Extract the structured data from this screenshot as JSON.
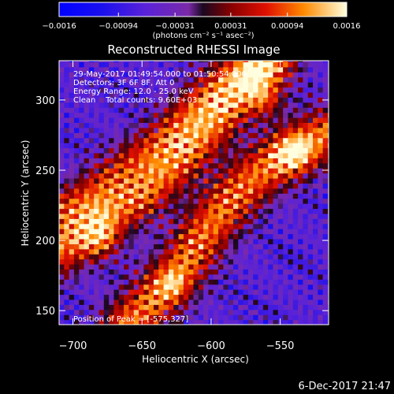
{
  "chart_data": {
    "type": "heatmap",
    "title": "Reconstructed RHESSI Image",
    "xlabel": "Heliocentric X (arcsec)",
    "ylabel": "Heliocentric Y (arcsec)",
    "xlim": [
      -710,
      -515
    ],
    "ylim": [
      140,
      328
    ],
    "x_ticks": [
      -700,
      -650,
      -600,
      -550
    ],
    "x_tick_labels": [
      "−700",
      "−650",
      "−600",
      "−550"
    ],
    "y_ticks": [
      150,
      200,
      250,
      300
    ],
    "y_tick_labels": [
      "150",
      "200",
      "250",
      "300"
    ],
    "colorbar": {
      "range": [
        -0.0016,
        0.0016
      ],
      "ticks": [
        -0.0016,
        -0.00094,
        -0.00031,
        0.00031,
        0.00094,
        0.0016
      ],
      "tick_labels": [
        "−0.0016",
        "−0.00094",
        "−0.00031",
        "0.00031",
        "0.00094",
        "0.0016"
      ],
      "units_label": "(photons cm⁻² s⁻¹ asec⁻²)"
    },
    "annotations": {
      "line1": "29-May-2017 01:49:54.000 to 01:50:54.000",
      "line2": "Detectors: 3F 6F 8F, Att 0",
      "line3": "Energy Range: 12.0 - 25.0 keV",
      "line4": "Clean    Total counts: 9.60E+03",
      "peak": "Position of Peak = [-575,327]"
    },
    "bands": [
      {
        "path": [
          [
            -710,
            222
          ],
          [
            -690,
            232
          ],
          [
            -670,
            248
          ],
          [
            -650,
            262
          ],
          [
            -632,
            276
          ],
          [
            -612,
            296
          ],
          [
            -590,
            316
          ],
          [
            -568,
            328
          ]
        ],
        "width": 12,
        "peak": 0.0011
      },
      {
        "path": [
          [
            -710,
            192
          ],
          [
            -690,
            208
          ],
          [
            -670,
            220
          ],
          [
            -650,
            232
          ],
          [
            -630,
            250
          ],
          [
            -610,
            270
          ],
          [
            -590,
            292
          ],
          [
            -570,
            312
          ],
          [
            -555,
            328
          ]
        ],
        "width": 13,
        "peak": 0.0015
      },
      {
        "path": [
          [
            -660,
            140
          ],
          [
            -640,
            160
          ],
          [
            -622,
            180
          ],
          [
            -605,
            205
          ],
          [
            -585,
            230
          ],
          [
            -565,
            248
          ],
          [
            -545,
            262
          ],
          [
            -525,
            272
          ],
          [
            -515,
            276
          ]
        ],
        "width": 14,
        "peak": 0.0016
      }
    ],
    "blobs": [
      {
        "x": -680,
        "y": 200,
        "r": 10,
        "amp": 0.0016
      },
      {
        "x": -560,
        "y": 300,
        "r": 9,
        "amp": 0.0013
      },
      {
        "x": -540,
        "y": 262,
        "r": 10,
        "amp": 0.0016
      },
      {
        "x": -628,
        "y": 168,
        "r": 8,
        "amp": 0.001
      }
    ]
  },
  "footer": {
    "date": "6-Dec-2017 21:47"
  }
}
